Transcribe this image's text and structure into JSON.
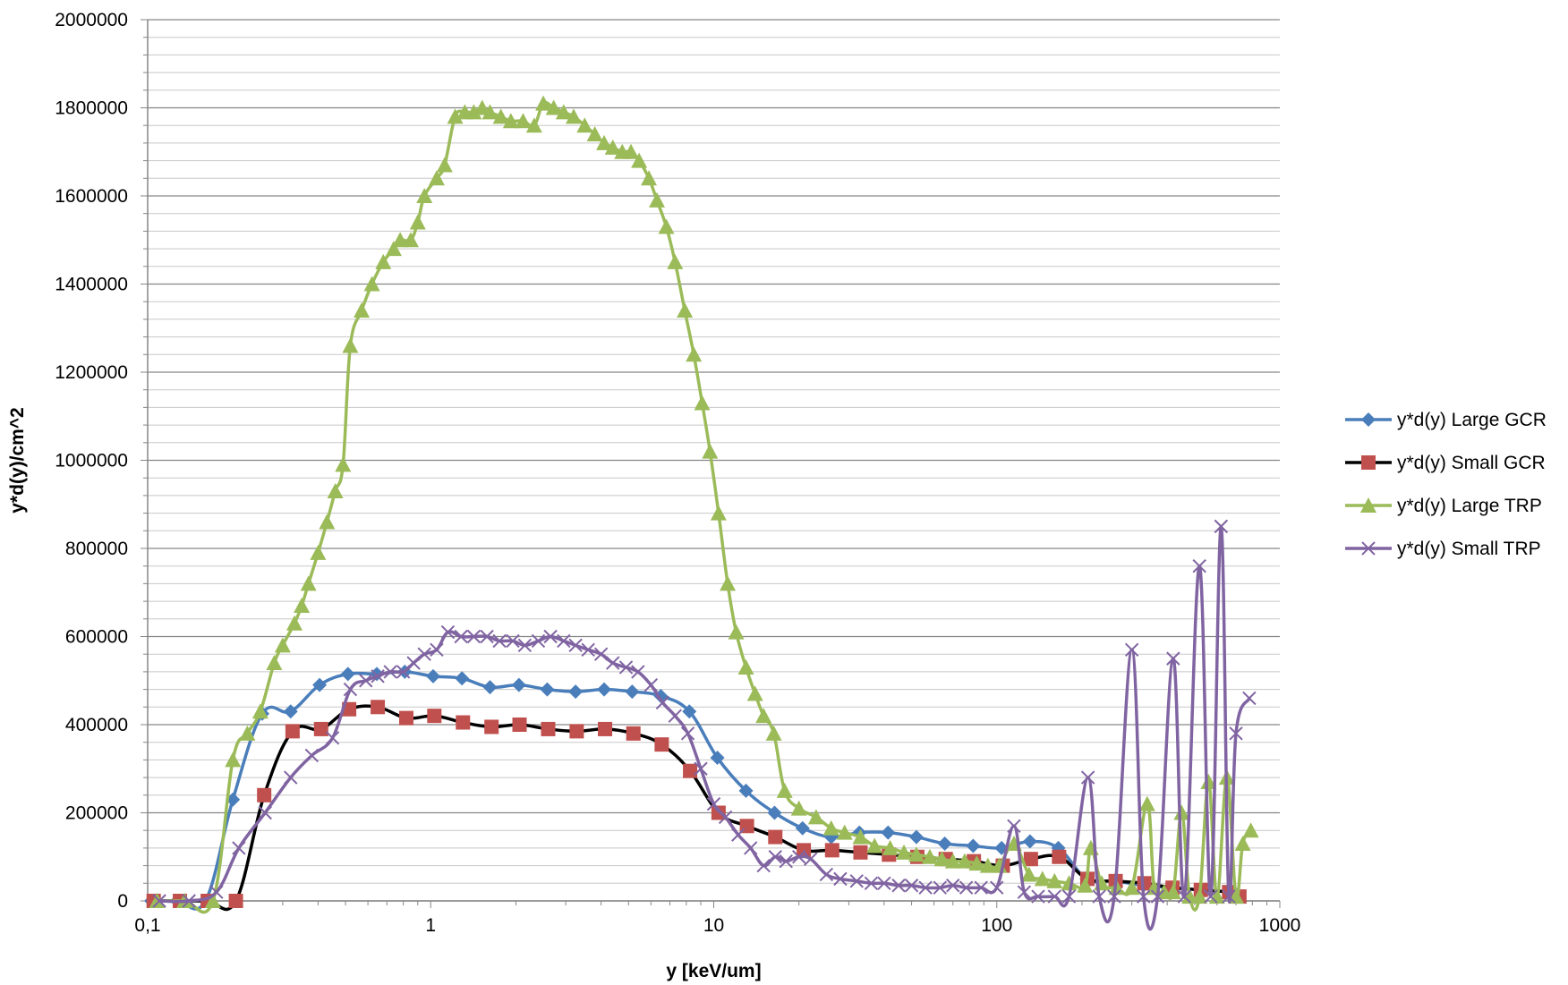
{
  "chart_data": {
    "type": "line",
    "title": "",
    "xlabel": "y [keV/um]",
    "ylabel": "y*d(y)/cm^2",
    "xscale": "log",
    "xlim": [
      0.1,
      1000
    ],
    "ylim": [
      0,
      2000000
    ],
    "x_tick_labels": [
      "0,1",
      "1",
      "10",
      "100",
      "1000"
    ],
    "y_tick_labels": [
      "0",
      "200000",
      "400000",
      "600000",
      "800000",
      "1000000",
      "1200000",
      "1400000",
      "1600000",
      "1800000",
      "2000000"
    ],
    "grid": "horizontal major and minor",
    "legend_position": "right",
    "series": [
      {
        "name": "y*d(y) Large GCR",
        "color": "#4a7ebb",
        "marker": "diamond",
        "points": [
          [
            0.103,
            0
          ],
          [
            0.127,
            0
          ],
          [
            0.16,
            0
          ],
          [
            0.2,
            230000
          ],
          [
            0.254,
            425000
          ],
          [
            0.32,
            430000
          ],
          [
            0.405,
            490000
          ],
          [
            0.51,
            515000
          ],
          [
            0.645,
            515000
          ],
          [
            0.81,
            520000
          ],
          [
            1.02,
            510000
          ],
          [
            1.29,
            505000
          ],
          [
            1.62,
            485000
          ],
          [
            2.05,
            490000
          ],
          [
            2.58,
            480000
          ],
          [
            3.25,
            475000
          ],
          [
            4.1,
            480000
          ],
          [
            5.15,
            475000
          ],
          [
            6.5,
            465000
          ],
          [
            8.2,
            430000
          ],
          [
            10.3,
            325000
          ],
          [
            13,
            250000
          ],
          [
            16.4,
            200000
          ],
          [
            20.6,
            165000
          ],
          [
            26,
            145000
          ],
          [
            32.7,
            155000
          ],
          [
            41.3,
            155000
          ],
          [
            52,
            145000
          ],
          [
            65.5,
            130000
          ],
          [
            82.5,
            125000
          ],
          [
            104,
            120000
          ],
          [
            131,
            135000
          ],
          [
            165,
            120000
          ],
          [
            208,
            50000
          ],
          [
            262,
            45000
          ],
          [
            330,
            35000
          ],
          [
            416,
            30000
          ],
          [
            524,
            25000
          ],
          [
            660,
            20000
          ],
          [
            700,
            15000
          ]
        ]
      },
      {
        "name": "y*d(y) Small GCR",
        "color": "#c0504d",
        "line_color": "#000000",
        "marker": "square",
        "points": [
          [
            0.105,
            0
          ],
          [
            0.13,
            0
          ],
          [
            0.163,
            0
          ],
          [
            0.205,
            0
          ],
          [
            0.258,
            240000
          ],
          [
            0.325,
            385000
          ],
          [
            0.41,
            390000
          ],
          [
            0.515,
            435000
          ],
          [
            0.65,
            440000
          ],
          [
            0.82,
            415000
          ],
          [
            1.03,
            420000
          ],
          [
            1.3,
            405000
          ],
          [
            1.64,
            395000
          ],
          [
            2.06,
            400000
          ],
          [
            2.6,
            390000
          ],
          [
            3.28,
            385000
          ],
          [
            4.13,
            390000
          ],
          [
            5.2,
            380000
          ],
          [
            6.55,
            355000
          ],
          [
            8.25,
            295000
          ],
          [
            10.4,
            200000
          ],
          [
            13.1,
            170000
          ],
          [
            16.5,
            145000
          ],
          [
            20.8,
            115000
          ],
          [
            26.2,
            115000
          ],
          [
            33,
            110000
          ],
          [
            41.6,
            105000
          ],
          [
            52.4,
            100000
          ],
          [
            66,
            95000
          ],
          [
            83,
            90000
          ],
          [
            105,
            80000
          ],
          [
            132,
            95000
          ],
          [
            166,
            100000
          ],
          [
            209,
            50000
          ],
          [
            263,
            45000
          ],
          [
            332,
            40000
          ],
          [
            418,
            30000
          ],
          [
            526,
            25000
          ],
          [
            662,
            20000
          ],
          [
            720,
            10000
          ]
        ]
      },
      {
        "name": "y*d(y) Large TRP",
        "color": "#9bbb59",
        "marker": "triangle",
        "points": [
          [
            0.108,
            0
          ],
          [
            0.135,
            0
          ],
          [
            0.17,
            0
          ],
          [
            0.2,
            320000
          ],
          [
            0.225,
            380000
          ],
          [
            0.25,
            430000
          ],
          [
            0.28,
            540000
          ],
          [
            0.3,
            580000
          ],
          [
            0.33,
            630000
          ],
          [
            0.35,
            670000
          ],
          [
            0.37,
            720000
          ],
          [
            0.4,
            790000
          ],
          [
            0.43,
            860000
          ],
          [
            0.46,
            930000
          ],
          [
            0.49,
            990000
          ],
          [
            0.52,
            1260000
          ],
          [
            0.57,
            1340000
          ],
          [
            0.62,
            1400000
          ],
          [
            0.68,
            1450000
          ],
          [
            0.74,
            1480000
          ],
          [
            0.78,
            1500000
          ],
          [
            0.85,
            1500000
          ],
          [
            0.9,
            1540000
          ],
          [
            0.95,
            1600000
          ],
          [
            1.05,
            1640000
          ],
          [
            1.12,
            1670000
          ],
          [
            1.22,
            1780000
          ],
          [
            1.32,
            1790000
          ],
          [
            1.42,
            1790000
          ],
          [
            1.52,
            1800000
          ],
          [
            1.62,
            1790000
          ],
          [
            1.77,
            1780000
          ],
          [
            1.92,
            1770000
          ],
          [
            2.12,
            1770000
          ],
          [
            2.32,
            1760000
          ],
          [
            2.5,
            1810000
          ],
          [
            2.72,
            1800000
          ],
          [
            2.95,
            1790000
          ],
          [
            3.2,
            1780000
          ],
          [
            3.5,
            1760000
          ],
          [
            3.8,
            1740000
          ],
          [
            4.1,
            1720000
          ],
          [
            4.4,
            1710000
          ],
          [
            4.75,
            1700000
          ],
          [
            5.1,
            1700000
          ],
          [
            5.45,
            1680000
          ],
          [
            5.9,
            1640000
          ],
          [
            6.3,
            1590000
          ],
          [
            6.8,
            1530000
          ],
          [
            7.3,
            1450000
          ],
          [
            7.9,
            1340000
          ],
          [
            8.5,
            1240000
          ],
          [
            9.1,
            1130000
          ],
          [
            9.7,
            1020000
          ],
          [
            10.4,
            880000
          ],
          [
            11.2,
            720000
          ],
          [
            12,
            610000
          ],
          [
            13,
            530000
          ],
          [
            14,
            470000
          ],
          [
            15,
            420000
          ],
          [
            16.3,
            380000
          ],
          [
            17.8,
            250000
          ],
          [
            20,
            210000
          ],
          [
            23,
            190000
          ],
          [
            26,
            165000
          ],
          [
            29,
            155000
          ],
          [
            33,
            145000
          ],
          [
            37,
            125000
          ],
          [
            42,
            120000
          ],
          [
            47,
            110000
          ],
          [
            52,
            105000
          ],
          [
            58,
            100000
          ],
          [
            64,
            95000
          ],
          [
            70,
            90000
          ],
          [
            77,
            90000
          ],
          [
            85,
            85000
          ],
          [
            93,
            80000
          ],
          [
            102,
            80000
          ],
          [
            115,
            130000
          ],
          [
            130,
            60000
          ],
          [
            145,
            50000
          ],
          [
            160,
            45000
          ],
          [
            180,
            40000
          ],
          [
            205,
            35000
          ],
          [
            215,
            120000
          ],
          [
            235,
            40000
          ],
          [
            265,
            30000
          ],
          [
            300,
            30000
          ],
          [
            340,
            220000
          ],
          [
            360,
            30000
          ],
          [
            390,
            20000
          ],
          [
            420,
            20000
          ],
          [
            450,
            200000
          ],
          [
            480,
            10000
          ],
          [
            520,
            10000
          ],
          [
            560,
            270000
          ],
          [
            600,
            10000
          ],
          [
            650,
            280000
          ],
          [
            700,
            10000
          ],
          [
            740,
            130000
          ],
          [
            790,
            160000
          ]
        ]
      },
      {
        "name": "y*d(y) Small TRP",
        "color": "#8064a2",
        "marker": "x",
        "points": [
          [
            0.11,
            0
          ],
          [
            0.14,
            0
          ],
          [
            0.175,
            20000
          ],
          [
            0.21,
            120000
          ],
          [
            0.26,
            200000
          ],
          [
            0.32,
            280000
          ],
          [
            0.38,
            330000
          ],
          [
            0.45,
            370000
          ],
          [
            0.52,
            480000
          ],
          [
            0.59,
            500000
          ],
          [
            0.65,
            510000
          ],
          [
            0.72,
            520000
          ],
          [
            0.8,
            520000
          ],
          [
            0.87,
            540000
          ],
          [
            0.95,
            560000
          ],
          [
            1.05,
            570000
          ],
          [
            1.15,
            610000
          ],
          [
            1.28,
            600000
          ],
          [
            1.42,
            600000
          ],
          [
            1.58,
            600000
          ],
          [
            1.75,
            590000
          ],
          [
            1.95,
            590000
          ],
          [
            2.15,
            580000
          ],
          [
            2.4,
            590000
          ],
          [
            2.65,
            600000
          ],
          [
            2.95,
            590000
          ],
          [
            3.25,
            580000
          ],
          [
            3.6,
            570000
          ],
          [
            4,
            560000
          ],
          [
            4.4,
            540000
          ],
          [
            4.9,
            530000
          ],
          [
            5.4,
            520000
          ],
          [
            6,
            490000
          ],
          [
            6.6,
            450000
          ],
          [
            7.3,
            420000
          ],
          [
            8.1,
            380000
          ],
          [
            9,
            300000
          ],
          [
            10,
            220000
          ],
          [
            11,
            190000
          ],
          [
            12.2,
            150000
          ],
          [
            13.5,
            120000
          ],
          [
            15,
            80000
          ],
          [
            16.5,
            100000
          ],
          [
            18,
            90000
          ],
          [
            20,
            100000
          ],
          [
            22,
            95000
          ],
          [
            25,
            60000
          ],
          [
            28,
            50000
          ],
          [
            32,
            45000
          ],
          [
            36,
            40000
          ],
          [
            40,
            40000
          ],
          [
            45,
            35000
          ],
          [
            50,
            35000
          ],
          [
            56,
            30000
          ],
          [
            63,
            30000
          ],
          [
            70,
            35000
          ],
          [
            78,
            30000
          ],
          [
            88,
            30000
          ],
          [
            100,
            30000
          ],
          [
            115,
            170000
          ],
          [
            125,
            20000
          ],
          [
            140,
            10000
          ],
          [
            160,
            10000
          ],
          [
            180,
            10000
          ],
          [
            210,
            280000
          ],
          [
            230,
            10000
          ],
          [
            260,
            10000
          ],
          [
            300,
            570000
          ],
          [
            330,
            10000
          ],
          [
            370,
            10000
          ],
          [
            420,
            550000
          ],
          [
            460,
            10000
          ],
          [
            520,
            760000
          ],
          [
            570,
            10000
          ],
          [
            620,
            850000
          ],
          [
            660,
            10000
          ],
          [
            700,
            380000
          ],
          [
            780,
            460000
          ]
        ]
      }
    ]
  }
}
